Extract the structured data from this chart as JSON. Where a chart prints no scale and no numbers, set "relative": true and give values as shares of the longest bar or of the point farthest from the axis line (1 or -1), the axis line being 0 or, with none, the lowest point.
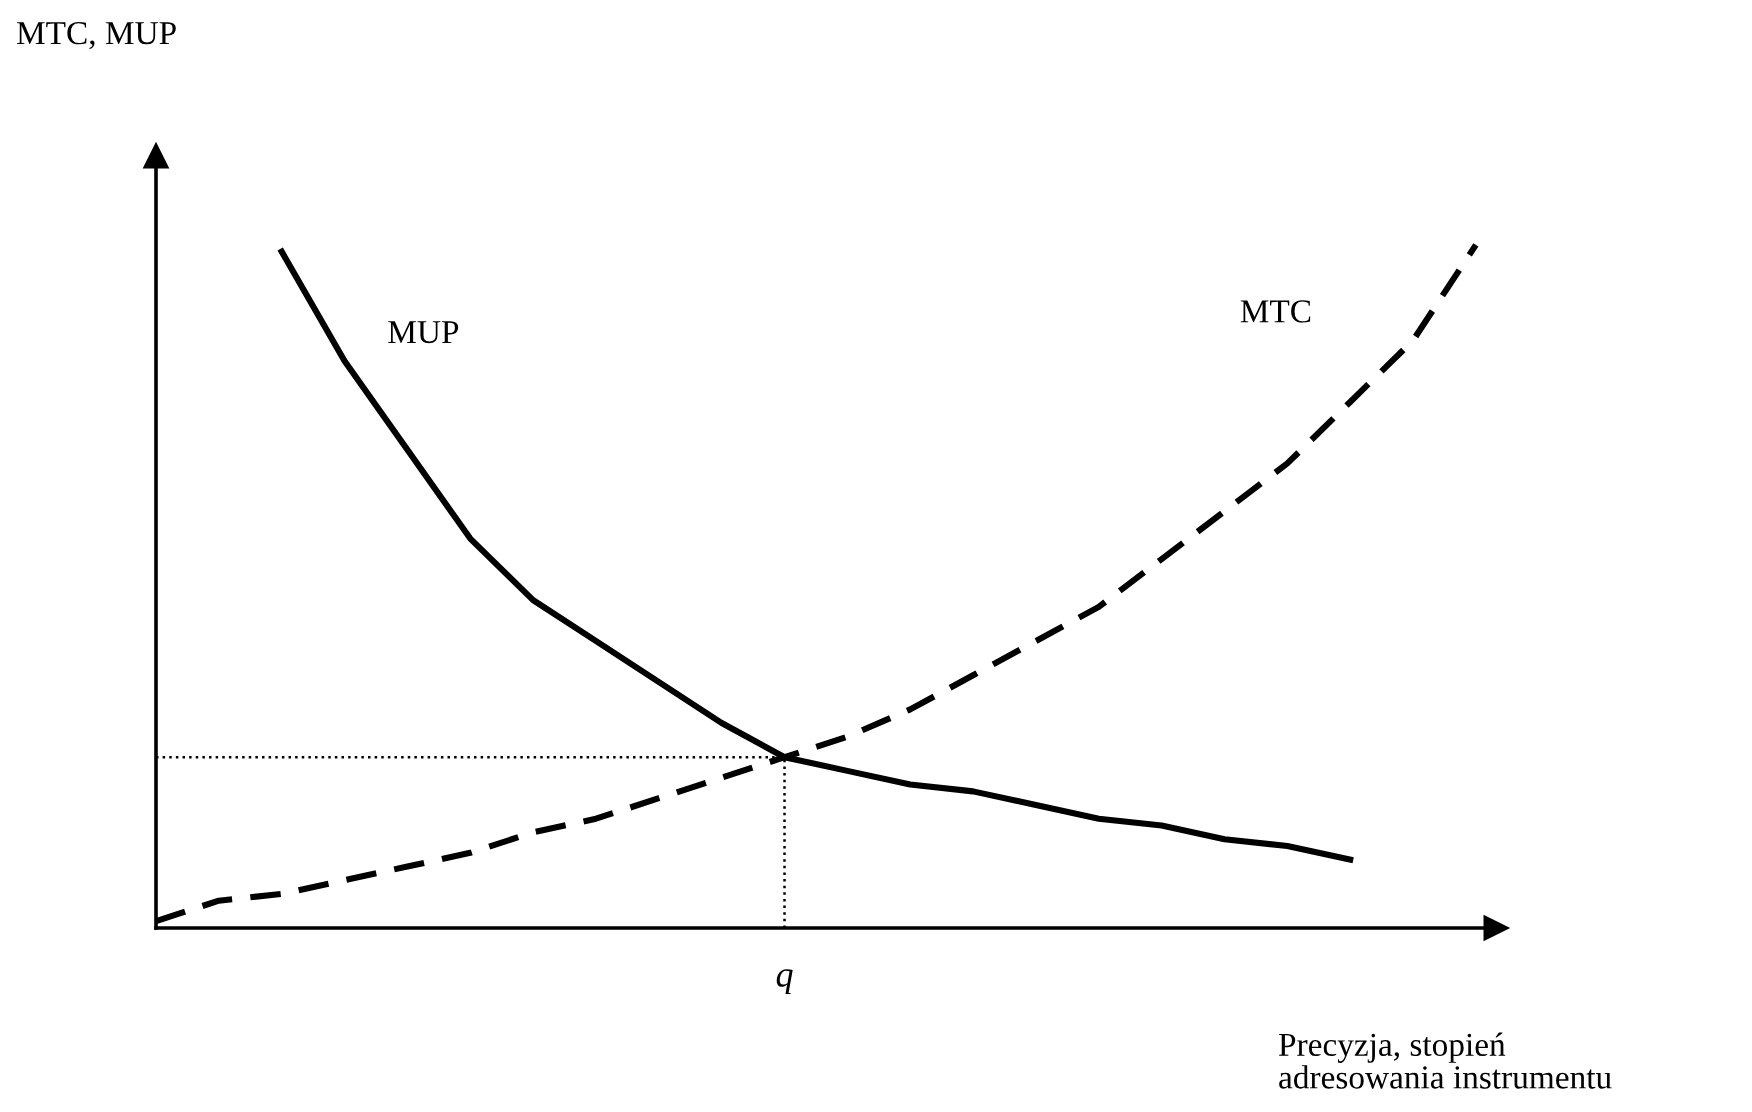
{
  "chart_data": {
    "type": "line",
    "relative": true,
    "xlabel": "Precyzja, stopień\nadresowania instrumentu",
    "categories": [
      null,
      null,
      null,
      null,
      null,
      null,
      null,
      null,
      null,
      null,
      null,
      null,
      null,
      null,
      null,
      null,
      null,
      null,
      null,
      null,
      null,
      null
    ],
    "series": [
      {
        "name": "MUP",
        "color": "#000000",
        "line_style": "solid",
        "values": [
          null,
          null,
          0.99,
          0.83,
          0.7,
          0.57,
          0.48,
          0.42,
          0.36,
          0.3,
          0.25,
          0.23,
          0.21,
          0.2,
          0.18,
          0.16,
          0.15,
          0.13,
          0.12,
          0.1,
          null,
          null
        ]
      },
      {
        "name": "MTC",
        "color": "#000000",
        "line_style": "dashed",
        "values": [
          0.01,
          0.04,
          0.05,
          0.07,
          0.09,
          0.11,
          0.14,
          0.16,
          0.19,
          0.22,
          0.25,
          0.28,
          0.32,
          0.37,
          0.42,
          0.47,
          0.54,
          0.61,
          0.68,
          0.77,
          0.86,
          1.0
        ]
      }
    ],
    "annotations": [
      {
        "text": "q"
      },
      "MTC, MUP"
    ],
    "ref_lines": [
      {
        "axis": "y",
        "value": 0.25,
        "line_style": "dotted",
        "color": "#000000"
      }
    ],
    "legend": false,
    "marker": "none"
  }
}
